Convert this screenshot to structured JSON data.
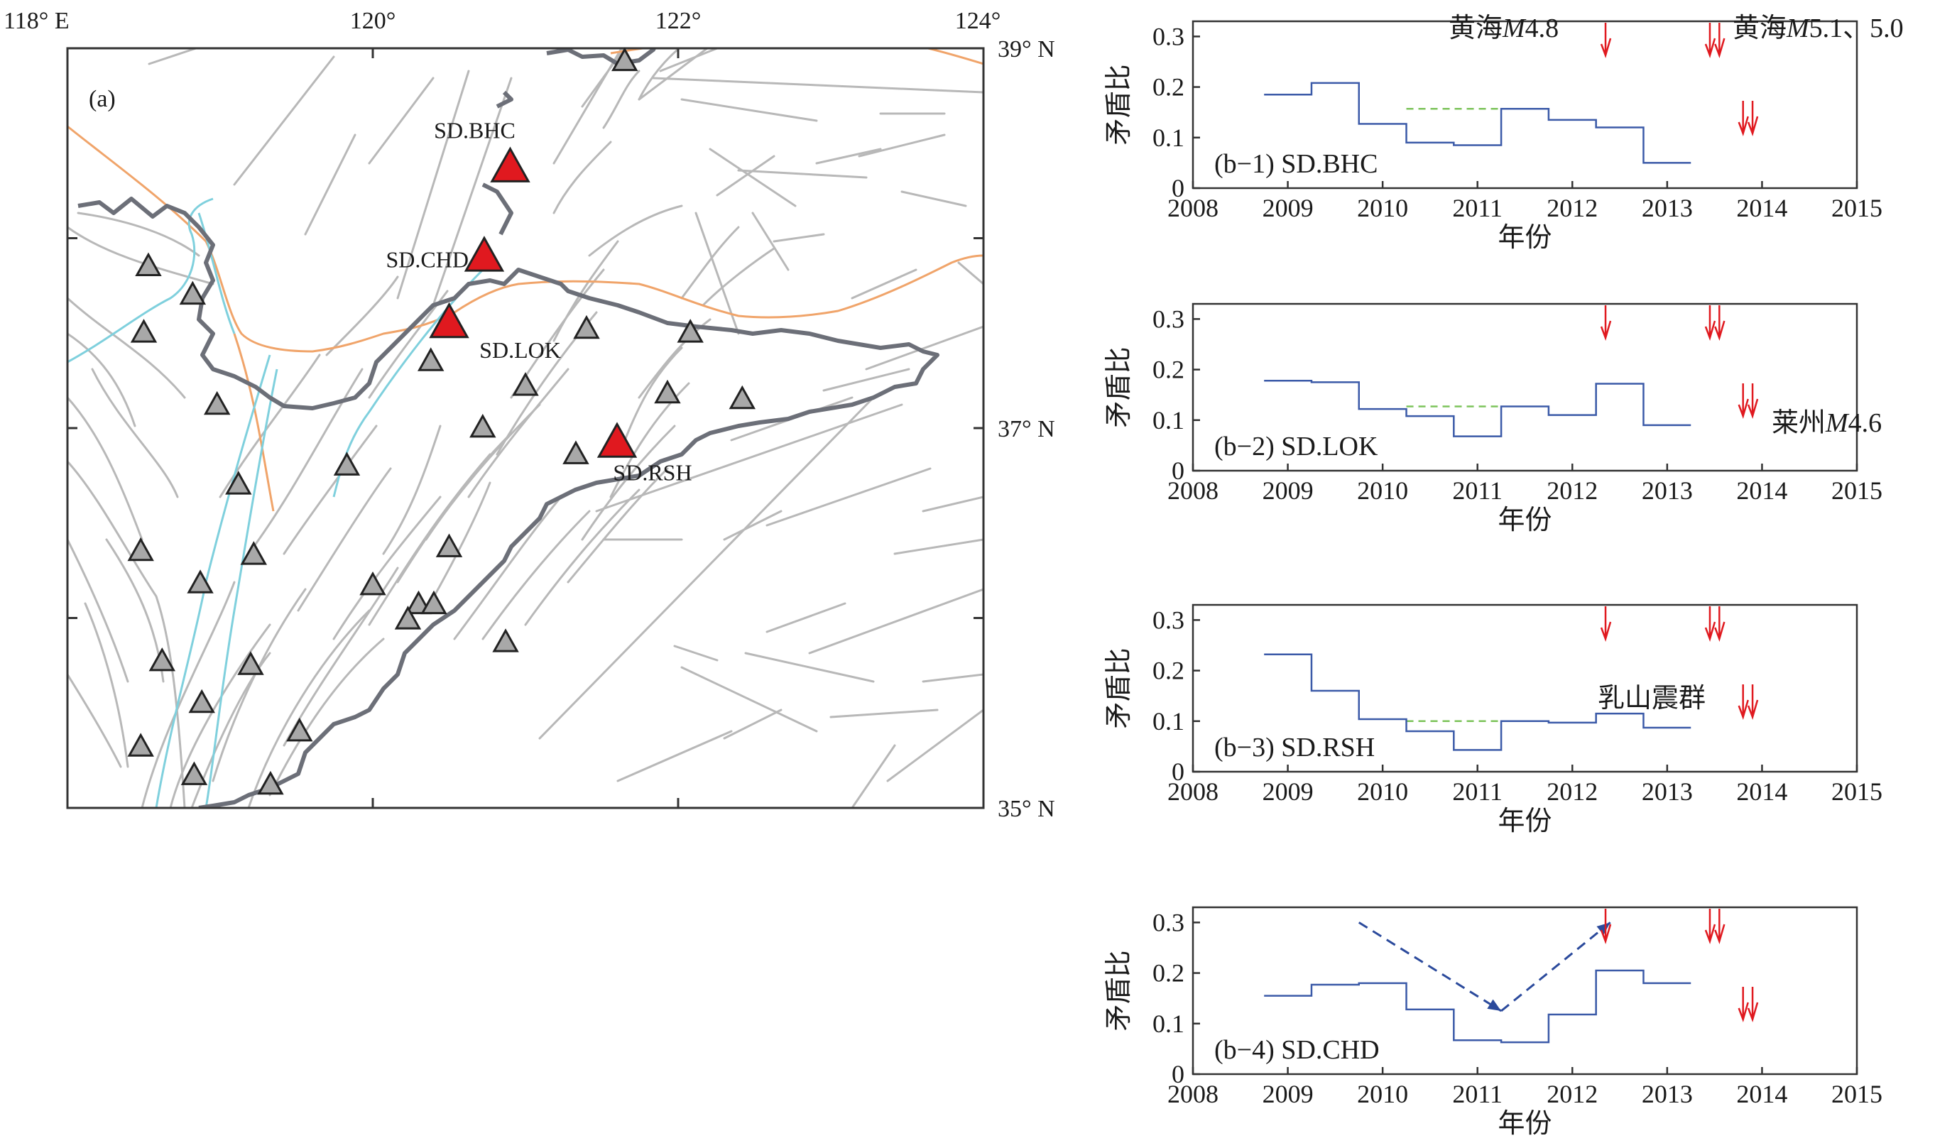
{
  "map": {
    "panel_label": "(a)",
    "lon_ticks": [
      {
        "lon": 118,
        "label": "118° E"
      },
      {
        "lon": 120,
        "label": "120°"
      },
      {
        "lon": 122,
        "label": "122°"
      },
      {
        "lon": 124,
        "label": "124°"
      }
    ],
    "lat_ticks": [
      {
        "lat": 39,
        "label": "39° N"
      },
      {
        "lat": 38,
        "label": ""
      },
      {
        "lat": 37,
        "label": "37° N"
      },
      {
        "lat": 36,
        "label": ""
      },
      {
        "lat": 35,
        "label": "35° N"
      }
    ],
    "lon_range": [
      118,
      124
    ],
    "lat_range": [
      35,
      39
    ],
    "stations_highlighted": [
      {
        "name": "SD.BHC",
        "lon": 120.9,
        "lat": 38.37
      },
      {
        "name": "SD.CHD",
        "lon": 120.73,
        "lat": 37.9
      },
      {
        "name": "SD.LOK",
        "lon": 120.5,
        "lat": 37.55
      },
      {
        "name": "SD.RSH",
        "lon": 121.6,
        "lat": 36.92
      }
    ],
    "stations_other": [
      {
        "lon": 121.65,
        "lat": 38.93
      },
      {
        "lon": 118.53,
        "lat": 37.85
      },
      {
        "lon": 118.82,
        "lat": 37.7
      },
      {
        "lon": 118.5,
        "lat": 37.5
      },
      {
        "lon": 118.98,
        "lat": 37.12
      },
      {
        "lon": 119.12,
        "lat": 36.7
      },
      {
        "lon": 118.48,
        "lat": 36.35
      },
      {
        "lon": 118.87,
        "lat": 36.18
      },
      {
        "lon": 119.22,
        "lat": 36.33
      },
      {
        "lon": 118.62,
        "lat": 35.77
      },
      {
        "lon": 118.88,
        "lat": 35.55
      },
      {
        "lon": 119.2,
        "lat": 35.75
      },
      {
        "lon": 118.48,
        "lat": 35.32
      },
      {
        "lon": 118.83,
        "lat": 35.17
      },
      {
        "lon": 119.52,
        "lat": 35.4
      },
      {
        "lon": 119.33,
        "lat": 35.12
      },
      {
        "lon": 119.83,
        "lat": 36.8
      },
      {
        "lon": 120.38,
        "lat": 37.35
      },
      {
        "lon": 120.72,
        "lat": 37.0
      },
      {
        "lon": 121.0,
        "lat": 37.22
      },
      {
        "lon": 121.4,
        "lat": 37.52
      },
      {
        "lon": 122.08,
        "lat": 37.5
      },
      {
        "lon": 121.93,
        "lat": 37.18
      },
      {
        "lon": 122.42,
        "lat": 37.15
      },
      {
        "lon": 121.33,
        "lat": 36.86
      },
      {
        "lon": 120.5,
        "lat": 36.37
      },
      {
        "lon": 120.0,
        "lat": 36.17
      },
      {
        "lon": 120.3,
        "lat": 36.07
      },
      {
        "lon": 120.4,
        "lat": 36.07
      },
      {
        "lon": 120.23,
        "lat": 35.99
      },
      {
        "lon": 120.87,
        "lat": 35.87
      }
    ]
  },
  "chart_data": [
    {
      "type": "line",
      "step": true,
      "panel_label": "(b−1) SD.BHC",
      "xlabel": "年份",
      "ylabel": "矛盾比",
      "xlim": [
        2008,
        2015
      ],
      "ylim": [
        0,
        0.33
      ],
      "x_ticks": [
        "2008",
        "2009",
        "2010",
        "2011",
        "2012",
        "2013",
        "2014",
        "2015"
      ],
      "y_ticks": [
        "0",
        "0.1",
        "0.2",
        "0.3"
      ],
      "steps": [
        {
          "x0": 2008.75,
          "x1": 2009.25,
          "y": 0.185
        },
        {
          "x0": 2009.25,
          "x1": 2009.75,
          "y": 0.208
        },
        {
          "x0": 2009.75,
          "x1": 2010.25,
          "y": 0.127
        },
        {
          "x0": 2010.25,
          "x1": 2010.75,
          "y": 0.09
        },
        {
          "x0": 2010.75,
          "x1": 2011.25,
          "y": 0.085
        },
        {
          "x0": 2011.25,
          "x1": 2011.75,
          "y": 0.157
        },
        {
          "x0": 2011.75,
          "x1": 2012.25,
          "y": 0.135
        },
        {
          "x0": 2012.25,
          "x1": 2012.75,
          "y": 0.12
        },
        {
          "x0": 2012.75,
          "x1": 2013.25,
          "y": 0.05
        }
      ],
      "mean_line": {
        "x0": 2010.25,
        "x1": 2011.25,
        "y": 0.157
      },
      "arrows_top": [
        2012.35,
        2013.45,
        2013.55
      ],
      "arrows_low": [
        2013.8,
        2013.9
      ],
      "annotations": [
        {
          "text": "黄海",
          "italic": "M",
          "rest": "4.8"
        },
        {
          "text": "黄海",
          "italic": "M",
          "rest": "5.1、5.0"
        }
      ]
    },
    {
      "type": "line",
      "step": true,
      "panel_label": "(b−2) SD.LOK",
      "xlabel": "年份",
      "ylabel": "矛盾比",
      "xlim": [
        2008,
        2015
      ],
      "ylim": [
        0,
        0.33
      ],
      "x_ticks": [
        "2008",
        "2009",
        "2010",
        "2011",
        "2012",
        "2013",
        "2014",
        "2015"
      ],
      "y_ticks": [
        "0",
        "0.1",
        "0.2",
        "0.3"
      ],
      "steps": [
        {
          "x0": 2008.75,
          "x1": 2009.25,
          "y": 0.178
        },
        {
          "x0": 2009.25,
          "x1": 2009.75,
          "y": 0.175
        },
        {
          "x0": 2009.75,
          "x1": 2010.25,
          "y": 0.122
        },
        {
          "x0": 2010.25,
          "x1": 2010.75,
          "y": 0.108
        },
        {
          "x0": 2010.75,
          "x1": 2011.25,
          "y": 0.068
        },
        {
          "x0": 2011.25,
          "x1": 2011.75,
          "y": 0.127
        },
        {
          "x0": 2011.75,
          "x1": 2012.25,
          "y": 0.11
        },
        {
          "x0": 2012.25,
          "x1": 2012.75,
          "y": 0.172
        },
        {
          "x0": 2012.75,
          "x1": 2013.25,
          "y": 0.09
        }
      ],
      "mean_line": {
        "x0": 2010.25,
        "x1": 2011.25,
        "y": 0.127
      },
      "arrows_top": [
        2012.35,
        2013.45,
        2013.55
      ],
      "arrows_low": [
        2013.8,
        2013.9
      ],
      "annotations": [
        {
          "text": "莱州",
          "italic": "M",
          "rest": "4.6"
        }
      ]
    },
    {
      "type": "line",
      "step": true,
      "panel_label": "(b−3) SD.RSH",
      "xlabel": "年份",
      "ylabel": "矛盾比",
      "xlim": [
        2008,
        2015
      ],
      "ylim": [
        0,
        0.33
      ],
      "x_ticks": [
        "2008",
        "2009",
        "2010",
        "2011",
        "2012",
        "2013",
        "2014",
        "2015"
      ],
      "y_ticks": [
        "0",
        "0.1",
        "0.2",
        "0.3"
      ],
      "steps": [
        {
          "x0": 2008.75,
          "x1": 2009.25,
          "y": 0.232
        },
        {
          "x0": 2009.25,
          "x1": 2009.75,
          "y": 0.16
        },
        {
          "x0": 2009.75,
          "x1": 2010.25,
          "y": 0.104
        },
        {
          "x0": 2010.25,
          "x1": 2010.75,
          "y": 0.08
        },
        {
          "x0": 2010.75,
          "x1": 2011.25,
          "y": 0.043
        },
        {
          "x0": 2011.25,
          "x1": 2011.75,
          "y": 0.1
        },
        {
          "x0": 2011.75,
          "x1": 2012.25,
          "y": 0.097
        },
        {
          "x0": 2012.25,
          "x1": 2012.75,
          "y": 0.115
        },
        {
          "x0": 2012.75,
          "x1": 2013.25,
          "y": 0.087
        }
      ],
      "mean_line": {
        "x0": 2010.25,
        "x1": 2011.25,
        "y": 0.1
      },
      "arrows_top": [
        2012.35,
        2013.45,
        2013.55
      ],
      "arrows_low": [
        2013.8,
        2013.9
      ],
      "annotations": [
        {
          "text": "乳山震群",
          "italic": "",
          "rest": ""
        }
      ]
    },
    {
      "type": "line",
      "step": true,
      "panel_label": "(b−4) SD.CHD",
      "xlabel": "年份",
      "ylabel": "矛盾比",
      "xlim": [
        2008,
        2015
      ],
      "ylim": [
        0,
        0.33
      ],
      "x_ticks": [
        "2008",
        "2009",
        "2010",
        "2011",
        "2012",
        "2013",
        "2014",
        "2015"
      ],
      "y_ticks": [
        "0",
        "0.1",
        "0.2",
        "0.3"
      ],
      "steps": [
        {
          "x0": 2008.75,
          "x1": 2009.25,
          "y": 0.155
        },
        {
          "x0": 2009.25,
          "x1": 2009.75,
          "y": 0.177
        },
        {
          "x0": 2009.75,
          "x1": 2010.25,
          "y": 0.18
        },
        {
          "x0": 2010.25,
          "x1": 2010.75,
          "y": 0.128
        },
        {
          "x0": 2010.75,
          "x1": 2011.25,
          "y": 0.067
        },
        {
          "x0": 2011.25,
          "x1": 2011.75,
          "y": 0.063
        },
        {
          "x0": 2011.75,
          "x1": 2012.25,
          "y": 0.118
        },
        {
          "x0": 2012.25,
          "x1": 2012.75,
          "y": 0.205
        },
        {
          "x0": 2012.75,
          "x1": 2013.25,
          "y": 0.18
        }
      ],
      "trend_arrows": [
        {
          "from": [
            2009.75,
            0.3
          ],
          "to": [
            2011.25,
            0.125
          ]
        },
        {
          "from": [
            2011.25,
            0.125
          ],
          "to": [
            2012.4,
            0.3
          ]
        }
      ],
      "arrows_top": [
        2012.35,
        2013.45,
        2013.55
      ],
      "arrows_low": [
        2013.8,
        2013.9
      ],
      "annotations": []
    }
  ],
  "colors": {
    "station_highlight": "#e0191f",
    "station_other": "#a8a8a8",
    "fault": "#b8b8b8",
    "coast": "#6c6f78",
    "river": "#7fd0dd",
    "boundary": "#f0a46a",
    "step_line": "#3b5aa8",
    "mean_line": "#7cc35a",
    "event_arrow": "#e0191f",
    "trend_arrow": "#2b4a9c"
  }
}
